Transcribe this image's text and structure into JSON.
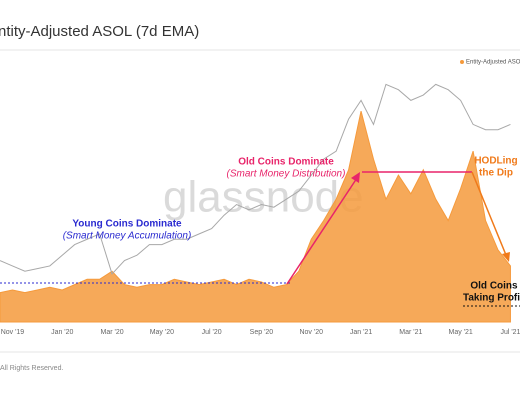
{
  "chart_data": {
    "type": "area",
    "title": "ntity-Adjusted ASOL (7d EMA)",
    "watermark": "glassnode",
    "categories": [
      null,
      "Nov '19",
      null,
      null,
      null,
      "Jan '20",
      null,
      null,
      null,
      "Mar '20",
      null,
      null,
      null,
      "May '20",
      null,
      null,
      null,
      "Jul '20",
      null,
      null,
      null,
      "Sep '20",
      null,
      null,
      null,
      "Nov '20",
      null,
      null,
      null,
      "Jan '21",
      null,
      null,
      null,
      "Mar '21",
      null,
      null,
      null,
      "May '21",
      null,
      null,
      null,
      "Jul '21"
    ],
    "ylim": [
      0,
      100
    ],
    "y2lim": [
      0,
      100
    ],
    "legend": "top-right",
    "series": [
      {
        "name": "Entity-Adjusted ASOL",
        "color": "#f59a3c",
        "values": [
          11,
          12,
          11,
          12,
          13,
          12,
          14,
          16,
          16,
          19,
          14,
          13,
          14,
          14,
          16,
          15,
          14,
          15,
          16,
          14,
          16,
          15,
          13,
          14,
          19,
          31,
          38,
          46,
          57,
          79,
          61,
          46,
          55,
          48,
          57,
          46,
          38,
          50,
          64,
          38,
          27,
          21
        ]
      },
      {
        "color": "#a8a8a8",
        "axis": "y2",
        "values": [
          23,
          21,
          19,
          20,
          21,
          25,
          29,
          31,
          33,
          18,
          23,
          25,
          29,
          29,
          31,
          31,
          33,
          35,
          40,
          44,
          42,
          44,
          43,
          46,
          49,
          55,
          61,
          64,
          76,
          83,
          74,
          89,
          87,
          83,
          85,
          89,
          87,
          83,
          74,
          72,
          72,
          74
        ]
      }
    ],
    "annotations": [
      {
        "text": "Young Coins Dominate",
        "color": "#2a2ad0"
      },
      {
        "text": "(Smart Money Accumulation)",
        "color": "#2a2ad0"
      },
      {
        "text": "Old Coins Dominate",
        "color": "#e8246a"
      },
      {
        "text": "(Smart Money Distribution)",
        "color": "#e8246a"
      },
      {
        "text": "HODLing",
        "color": "#f07a1a"
      },
      {
        "text": "the Dip",
        "color": "#f07a1a"
      },
      {
        "text": "Old Coins",
        "color": "#111111"
      },
      {
        "text": "Taking Profit",
        "color": "#111111"
      }
    ]
  },
  "footer": "All Rights Reserved."
}
